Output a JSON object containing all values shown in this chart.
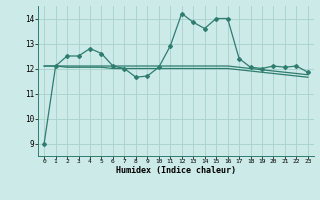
{
  "x": [
    0,
    1,
    2,
    3,
    4,
    5,
    6,
    7,
    8,
    9,
    10,
    11,
    12,
    13,
    14,
    15,
    16,
    17,
    18,
    19,
    20,
    21,
    22,
    23
  ],
  "y_main": [
    9.0,
    12.1,
    12.5,
    12.5,
    12.8,
    12.6,
    12.1,
    12.0,
    11.65,
    11.7,
    12.05,
    12.9,
    14.2,
    13.85,
    13.6,
    14.0,
    14.0,
    12.4,
    12.05,
    12.0,
    12.1,
    12.05,
    12.1,
    11.85
  ],
  "y_trend1": [
    12.1,
    12.1,
    12.1,
    12.1,
    12.1,
    12.1,
    12.1,
    12.1,
    12.1,
    12.1,
    12.1,
    12.1,
    12.1,
    12.1,
    12.1,
    12.1,
    12.1,
    12.05,
    12.0,
    11.95,
    11.9,
    11.85,
    11.8,
    11.75
  ],
  "y_trend2": [
    12.1,
    12.1,
    12.05,
    12.05,
    12.05,
    12.05,
    12.0,
    12.0,
    12.0,
    12.0,
    12.0,
    12.0,
    12.0,
    12.0,
    12.0,
    12.0,
    12.0,
    11.95,
    11.9,
    11.85,
    11.8,
    11.75,
    11.7,
    11.65
  ],
  "line_color": "#2e7d6e",
  "bg_color": "#cceae7",
  "grid_color": "#aed4d0",
  "xlabel": "Humidex (Indice chaleur)",
  "ylim": [
    8.5,
    14.5
  ],
  "xlim": [
    -0.5,
    23.5
  ],
  "yticks": [
    9,
    10,
    11,
    12,
    13,
    14
  ],
  "xticks": [
    0,
    1,
    2,
    3,
    4,
    5,
    6,
    7,
    8,
    9,
    10,
    11,
    12,
    13,
    14,
    15,
    16,
    17,
    18,
    19,
    20,
    21,
    22,
    23
  ]
}
